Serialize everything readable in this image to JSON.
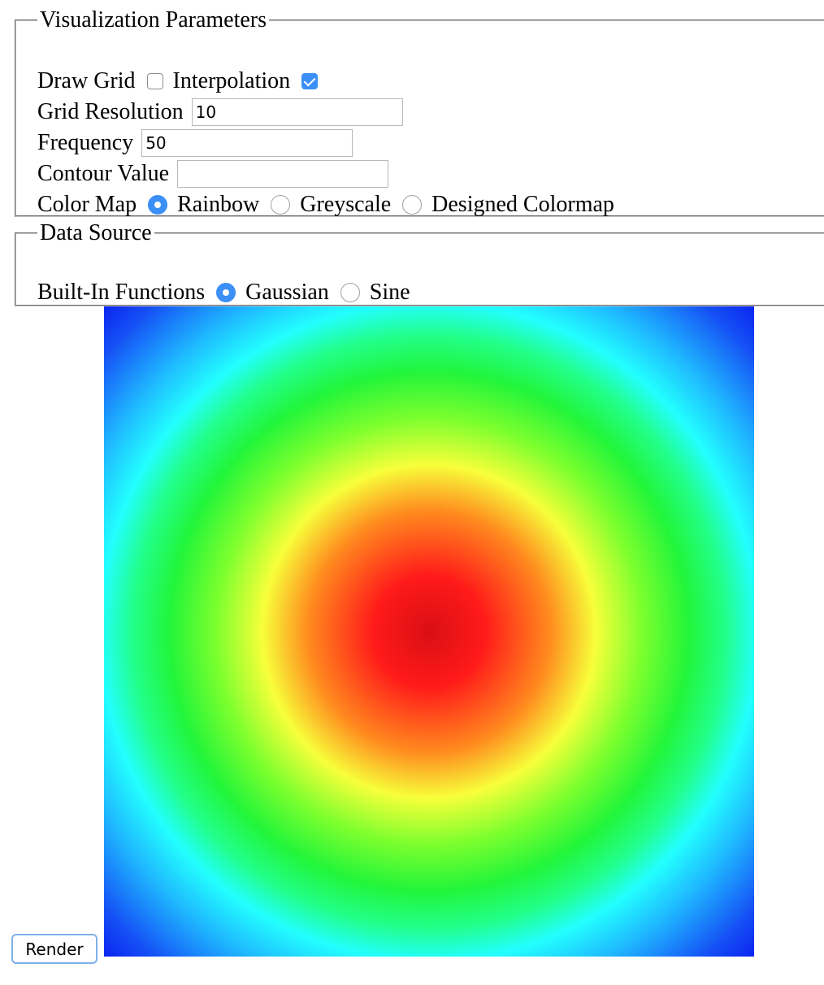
{
  "viz": {
    "legend": "Visualization Parameters",
    "draw_grid_label": "Draw Grid",
    "draw_grid_checked": false,
    "interpolation_label": "Interpolation",
    "interpolation_checked": true,
    "grid_resolution_label": "Grid Resolution",
    "grid_resolution_value": "10",
    "frequency_label": "Frequency",
    "frequency_value": "50",
    "contour_value_label": "Contour Value",
    "contour_value_value": "",
    "color_map_label": "Color Map",
    "color_map_options": [
      "Rainbow",
      "Greyscale",
      "Designed Colormap"
    ],
    "color_map_selected": "Rainbow"
  },
  "data_source": {
    "legend": "Data Source",
    "builtin_label": "Built-In Functions",
    "options": [
      "Gaussian",
      "Sine"
    ],
    "selected": "Gaussian"
  },
  "render_label": "Render",
  "colors": {
    "accent": "#3b8ff5",
    "rainbow_stops": [
      "#0a1ff0",
      "#1fb8ff",
      "#22ffff",
      "#22f53a",
      "#f7ff3a",
      "#ff8a1e",
      "#ff1a1a",
      "#d90f14"
    ]
  }
}
